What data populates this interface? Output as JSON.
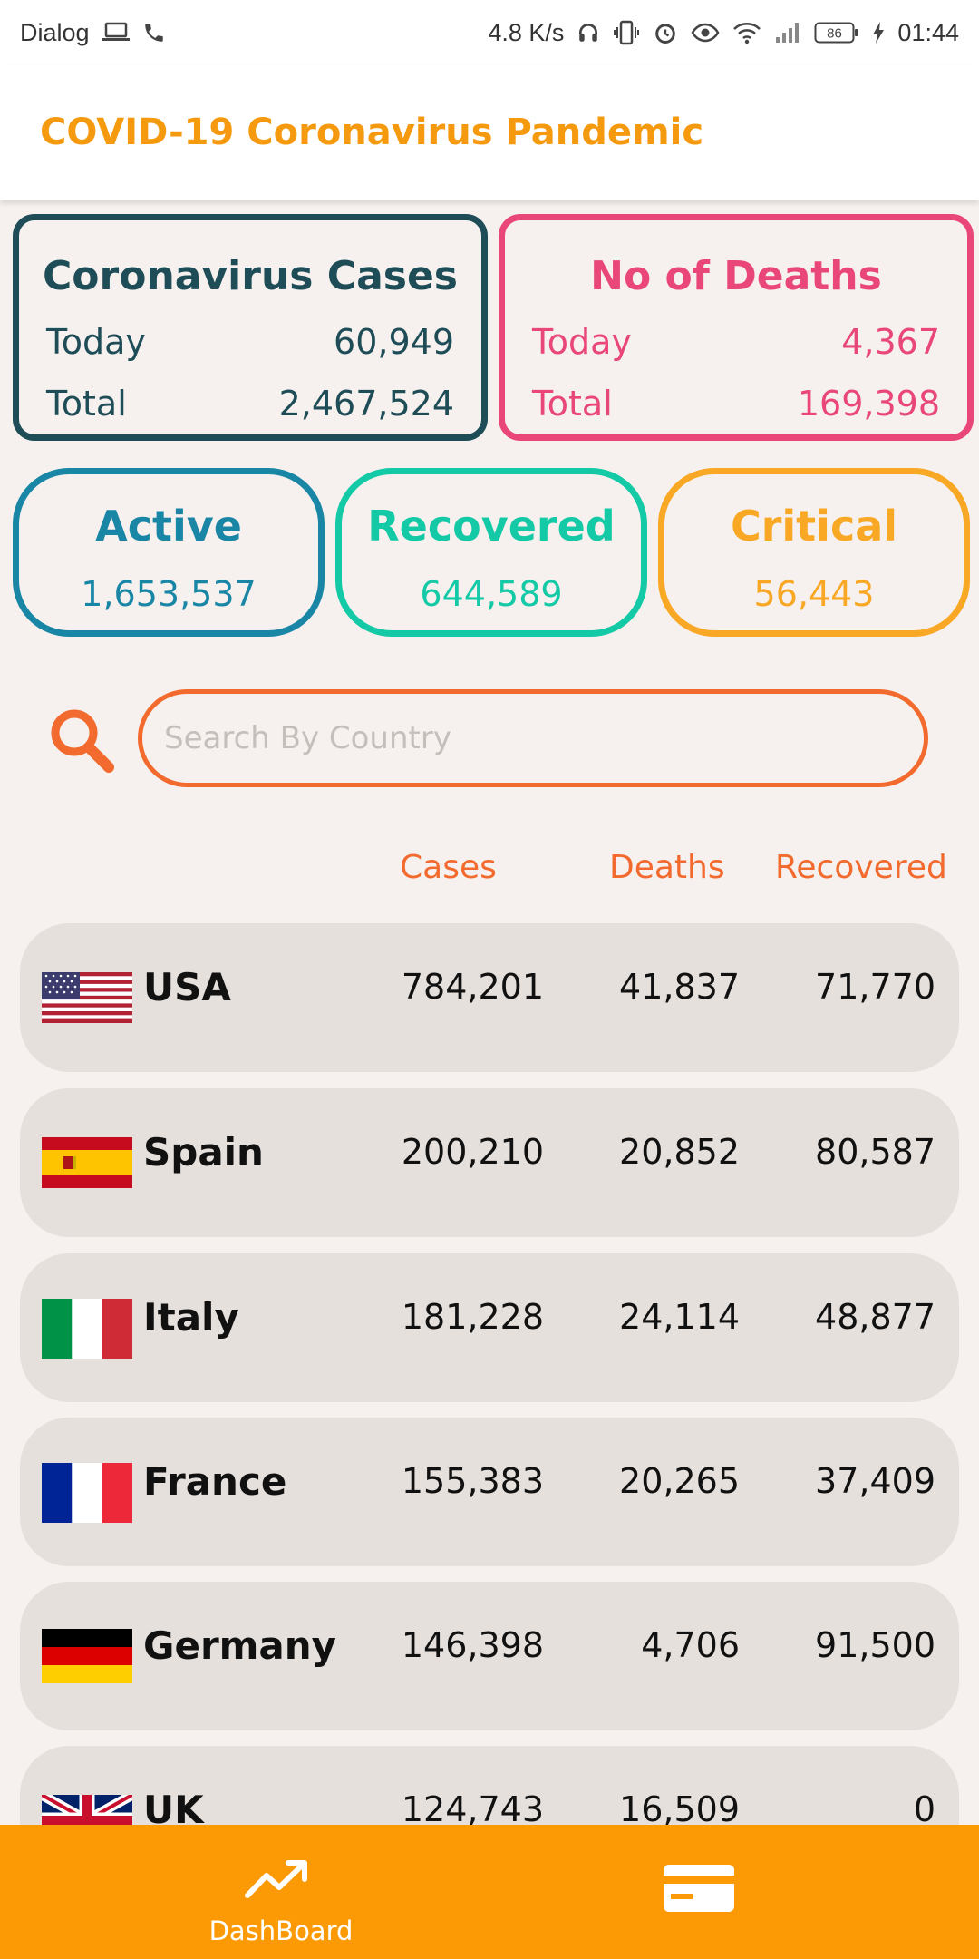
{
  "status_bar": {
    "carrier": "Dialog",
    "speed": "4.8 K/s",
    "battery": "86",
    "time": "01:44",
    "icons": [
      "laptop-icon",
      "phone-icon",
      "headphones-icon",
      "vibrate-icon",
      "alarm-icon",
      "eye-icon",
      "wifi-icon",
      "signal-icon",
      "battery-icon",
      "charging-icon"
    ]
  },
  "appbar": {
    "title": "COVID-19 Coronavirus Pandemic"
  },
  "cases_card": {
    "title": "Coronavirus Cases",
    "today_label": "Today",
    "today_value": "60,949",
    "total_label": "Total",
    "total_value": "2,467,524"
  },
  "deaths_card": {
    "title": "No of Deaths",
    "today_label": "Today",
    "today_value": "4,367",
    "total_label": "Total",
    "total_value": "169,398"
  },
  "active": {
    "label": "Active",
    "value": "1,653,537"
  },
  "recovered": {
    "label": "Recovered",
    "value": "644,589"
  },
  "critical": {
    "label": "Critical",
    "value": "56,443"
  },
  "search": {
    "placeholder": "Search By Country",
    "icon": "search-icon"
  },
  "table": {
    "headers": {
      "cases": "Cases",
      "deaths": "Deaths",
      "recovered": "Recovered"
    },
    "rows": [
      {
        "country": "USA",
        "flag": "usa-flag-icon",
        "cases": "784,201",
        "deaths": "41,837",
        "recovered": "71,770"
      },
      {
        "country": "Spain",
        "flag": "spain-flag-icon",
        "cases": "200,210",
        "deaths": "20,852",
        "recovered": "80,587"
      },
      {
        "country": "Italy",
        "flag": "italy-flag-icon",
        "cases": "181,228",
        "deaths": "24,114",
        "recovered": "48,877"
      },
      {
        "country": "France",
        "flag": "france-flag-icon",
        "cases": "155,383",
        "deaths": "20,265",
        "recovered": "37,409"
      },
      {
        "country": "Germany",
        "flag": "germany-flag-icon",
        "cases": "146,398",
        "deaths": "4,706",
        "recovered": "91,500"
      },
      {
        "country": "UK",
        "flag": "uk-flag-icon",
        "cases": "124,743",
        "deaths": "16,509",
        "recovered": "0"
      }
    ]
  },
  "bottom_nav": {
    "dashboard_label": "DashBoard",
    "dashboard_icon": "trending-up-icon",
    "second_icon": "credit-card-icon"
  },
  "colors": {
    "title_orange": "#f59a0f",
    "cases_teal": "#1e4d57",
    "deaths_pink": "#e9467a",
    "active_blue": "#1a86a6",
    "recovered_green": "#14c9a6",
    "critical_yellow": "#f9a825",
    "search_orange": "#f26a2e",
    "nav_orange": "#fb9a05",
    "row_bg": "#e6e0dd",
    "page_bg": "#f6f1ee"
  }
}
